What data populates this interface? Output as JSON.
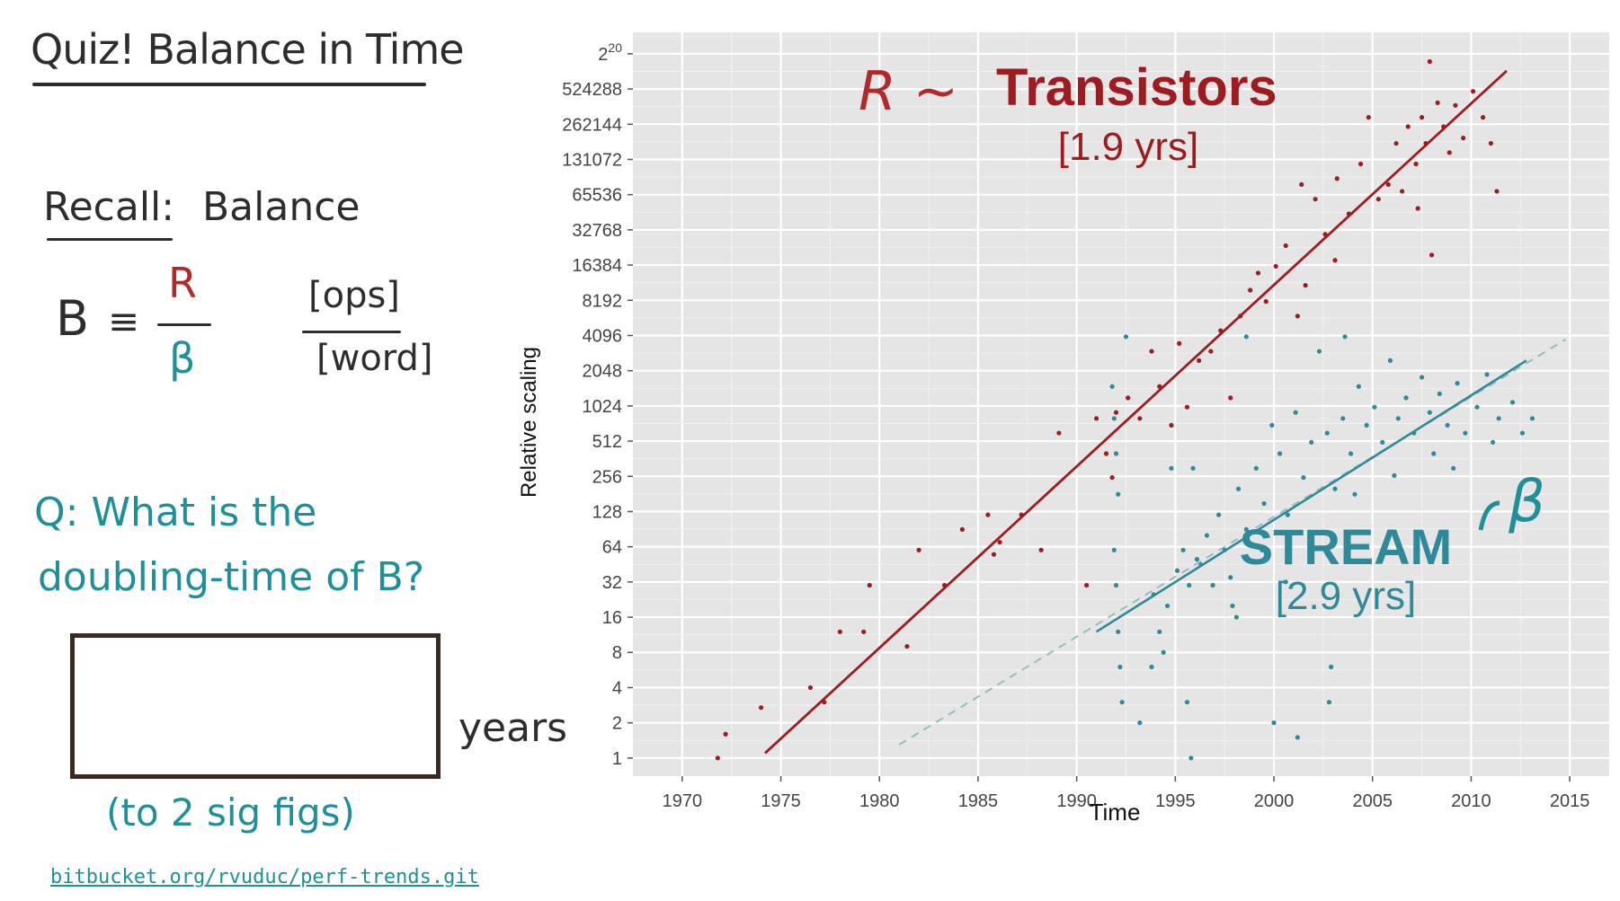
{
  "notes": {
    "title": "Quiz! Balance in Time",
    "recall_label": "Recall:",
    "recall_word": "Balance",
    "formula_lhs": "B",
    "formula_equiv": "≡",
    "formula_num": "R",
    "formula_den": "β",
    "unit_num": "[ops]",
    "unit_den": "[word]",
    "question_line1": "Q: What is the",
    "question_line2": "doubling-time of B?",
    "years_label": "years",
    "sigfigs_label": "(to 2 sig figs)",
    "repo_link": "bitbucket.org/rvuduc/perf-trends.git"
  },
  "colors": {
    "transistors": "#9e1b1f",
    "stream": "#2e8a9a",
    "panel": "#e5e5e5",
    "grid": "#ffffff"
  },
  "chart_data": {
    "type": "scatter",
    "xlabel": "Time",
    "ylabel": "Relative scaling",
    "xlim": [
      1967.5,
      2017
    ],
    "ylim": [
      0.7,
      1600000
    ],
    "y_scale": "log2",
    "x_ticks": [
      1970,
      1975,
      1980,
      1985,
      1990,
      1995,
      2000,
      2005,
      2010,
      2015
    ],
    "y_tick_values": [
      1,
      2,
      4,
      8,
      16,
      32,
      64,
      128,
      256,
      512,
      1024,
      2048,
      4096,
      8192,
      16384,
      32768,
      65536,
      131072,
      262144,
      524288,
      1048576
    ],
    "y_tick_labels": [
      "1",
      "2",
      "4",
      "8",
      "16",
      "32",
      "64",
      "128",
      "256",
      "512",
      "1024",
      "2048",
      "4096",
      "8192",
      "16384",
      "32768",
      "65536",
      "131072",
      "262144",
      "524288",
      "2^20"
    ],
    "grid": true,
    "series": [
      {
        "name": "Transistors",
        "doubling_label": "[1.9 yrs]",
        "annotation_symbol": "R ~",
        "fit": {
          "x": [
            1974.2,
            2011.8
          ],
          "y": [
            1.1,
            750000
          ]
        },
        "points": [
          [
            1971.8,
            1
          ],
          [
            1972.2,
            1.6
          ],
          [
            1974,
            2.7
          ],
          [
            1976.5,
            4
          ],
          [
            1978,
            12
          ],
          [
            1979.5,
            30
          ],
          [
            1979.2,
            12
          ],
          [
            1982,
            60
          ],
          [
            1983.3,
            30
          ],
          [
            1984.2,
            90
          ],
          [
            1985.5,
            120
          ],
          [
            1985.8,
            55
          ],
          [
            1987.2,
            120
          ],
          [
            1988.2,
            60
          ],
          [
            1989.1,
            600
          ],
          [
            1990.5,
            30
          ],
          [
            1991,
            800
          ],
          [
            1991.5,
            400
          ],
          [
            1991.8,
            250
          ],
          [
            1992,
            900
          ],
          [
            1992.6,
            1200
          ],
          [
            1993.2,
            800
          ],
          [
            1993.8,
            3000
          ],
          [
            1994.2,
            1500
          ],
          [
            1994.8,
            700
          ],
          [
            1995.2,
            3500
          ],
          [
            1995.6,
            1000
          ],
          [
            1996.2,
            2500
          ],
          [
            1996.8,
            3000
          ],
          [
            1997.3,
            4500
          ],
          [
            1997.8,
            1200
          ],
          [
            1998.3,
            6000
          ],
          [
            1998.8,
            10000
          ],
          [
            1999.2,
            14000
          ],
          [
            1999.6,
            8000
          ],
          [
            2000.1,
            16000
          ],
          [
            2000.6,
            24000
          ],
          [
            2001.2,
            6000
          ],
          [
            2001.6,
            11000
          ],
          [
            2001.4,
            80000
          ],
          [
            2002.1,
            60000
          ],
          [
            2002.6,
            30000
          ],
          [
            2003.2,
            90000
          ],
          [
            2003.8,
            45000
          ],
          [
            2004.4,
            120000
          ],
          [
            2004.8,
            300000
          ],
          [
            2005.3,
            60000
          ],
          [
            2005.8,
            80000
          ],
          [
            2006.2,
            180000
          ],
          [
            2006.5,
            70000
          ],
          [
            2006.8,
            250000
          ],
          [
            2007.2,
            120000
          ],
          [
            2007.5,
            300000
          ],
          [
            2007.7,
            180000
          ],
          [
            2007.9,
            900000
          ],
          [
            2008.3,
            400000
          ],
          [
            2008.6,
            250000
          ],
          [
            2008.9,
            150000
          ],
          [
            2009.2,
            380000
          ],
          [
            2009.6,
            200000
          ],
          [
            2010.1,
            500000
          ],
          [
            2010.6,
            300000
          ],
          [
            2011,
            180000
          ],
          [
            2011.3,
            70000
          ],
          [
            2008,
            20000
          ],
          [
            2007.3,
            50000
          ],
          [
            2003.1,
            18000
          ],
          [
            1986.1,
            70
          ],
          [
            1981.4,
            9
          ],
          [
            1977.2,
            3
          ]
        ]
      },
      {
        "name": "STREAM",
        "doubling_label": "[2.9 yrs]",
        "annotation_symbol": "β",
        "fit": {
          "x": [
            1991,
            2012.8
          ],
          "y": [
            12,
            2500
          ]
        },
        "fit_extension": {
          "x": [
            1981,
            2014.8
          ],
          "y": [
            1.3,
            3800
          ]
        },
        "points": [
          [
            1991.8,
            1500
          ],
          [
            1991.9,
            800
          ],
          [
            1992,
            400
          ],
          [
            1992.1,
            180
          ],
          [
            1991.9,
            60
          ],
          [
            1992,
            30
          ],
          [
            1992.1,
            12
          ],
          [
            1992.2,
            6
          ],
          [
            1992.3,
            3
          ],
          [
            1992.5,
            4000
          ],
          [
            1993.2,
            2
          ],
          [
            1993.8,
            6
          ],
          [
            1994.2,
            12
          ],
          [
            1994.6,
            20
          ],
          [
            1995.1,
            40
          ],
          [
            1995.4,
            60
          ],
          [
            1995.7,
            30
          ],
          [
            1996.1,
            50
          ],
          [
            1996.3,
            45
          ],
          [
            1996.6,
            80
          ],
          [
            1996.9,
            30
          ],
          [
            1997.2,
            120
          ],
          [
            1997.5,
            60
          ],
          [
            1997.9,
            20
          ],
          [
            1998.2,
            200
          ],
          [
            1998.6,
            90
          ],
          [
            1999.1,
            300
          ],
          [
            1999.5,
            150
          ],
          [
            1999.9,
            700
          ],
          [
            2000.3,
            400
          ],
          [
            2000.7,
            120
          ],
          [
            2001.1,
            900
          ],
          [
            2001.5,
            250
          ],
          [
            2001.9,
            500
          ],
          [
            2002.3,
            3000
          ],
          [
            2002.7,
            600
          ],
          [
            2003.1,
            200
          ],
          [
            2003.5,
            800
          ],
          [
            2003.9,
            400
          ],
          [
            2004.3,
            1500
          ],
          [
            2004.7,
            700
          ],
          [
            2005.1,
            1000
          ],
          [
            2005.5,
            500
          ],
          [
            2005.9,
            2500
          ],
          [
            2006.3,
            800
          ],
          [
            2006.7,
            1200
          ],
          [
            2007.1,
            600
          ],
          [
            2007.5,
            1800
          ],
          [
            2007.9,
            900
          ],
          [
            2008.4,
            1300
          ],
          [
            2008.8,
            700
          ],
          [
            2009.3,
            1600
          ],
          [
            2009.7,
            600
          ],
          [
            2010.3,
            1000
          ],
          [
            2010.8,
            1900
          ],
          [
            2011.4,
            800
          ],
          [
            2012.1,
            1100
          ],
          [
            2012.6,
            600
          ],
          [
            2013.1,
            800
          ],
          [
            1995.8,
            1
          ],
          [
            1995.9,
            300
          ],
          [
            1995.6,
            3
          ],
          [
            2002.8,
            3
          ],
          [
            2002.9,
            6
          ],
          [
            2000,
            2
          ],
          [
            2001.2,
            1.5
          ],
          [
            1998.6,
            4000
          ],
          [
            2003.6,
            4000
          ],
          [
            1994.8,
            300
          ],
          [
            1993.9,
            25
          ],
          [
            1994.4,
            8
          ],
          [
            1997.8,
            35
          ],
          [
            1998.1,
            16
          ],
          [
            1999.4,
            60
          ],
          [
            2000.6,
            32
          ],
          [
            2004.1,
            180
          ],
          [
            2006.1,
            260
          ],
          [
            2008.1,
            400
          ],
          [
            2009.1,
            300
          ],
          [
            2011.1,
            500
          ]
        ]
      }
    ]
  }
}
